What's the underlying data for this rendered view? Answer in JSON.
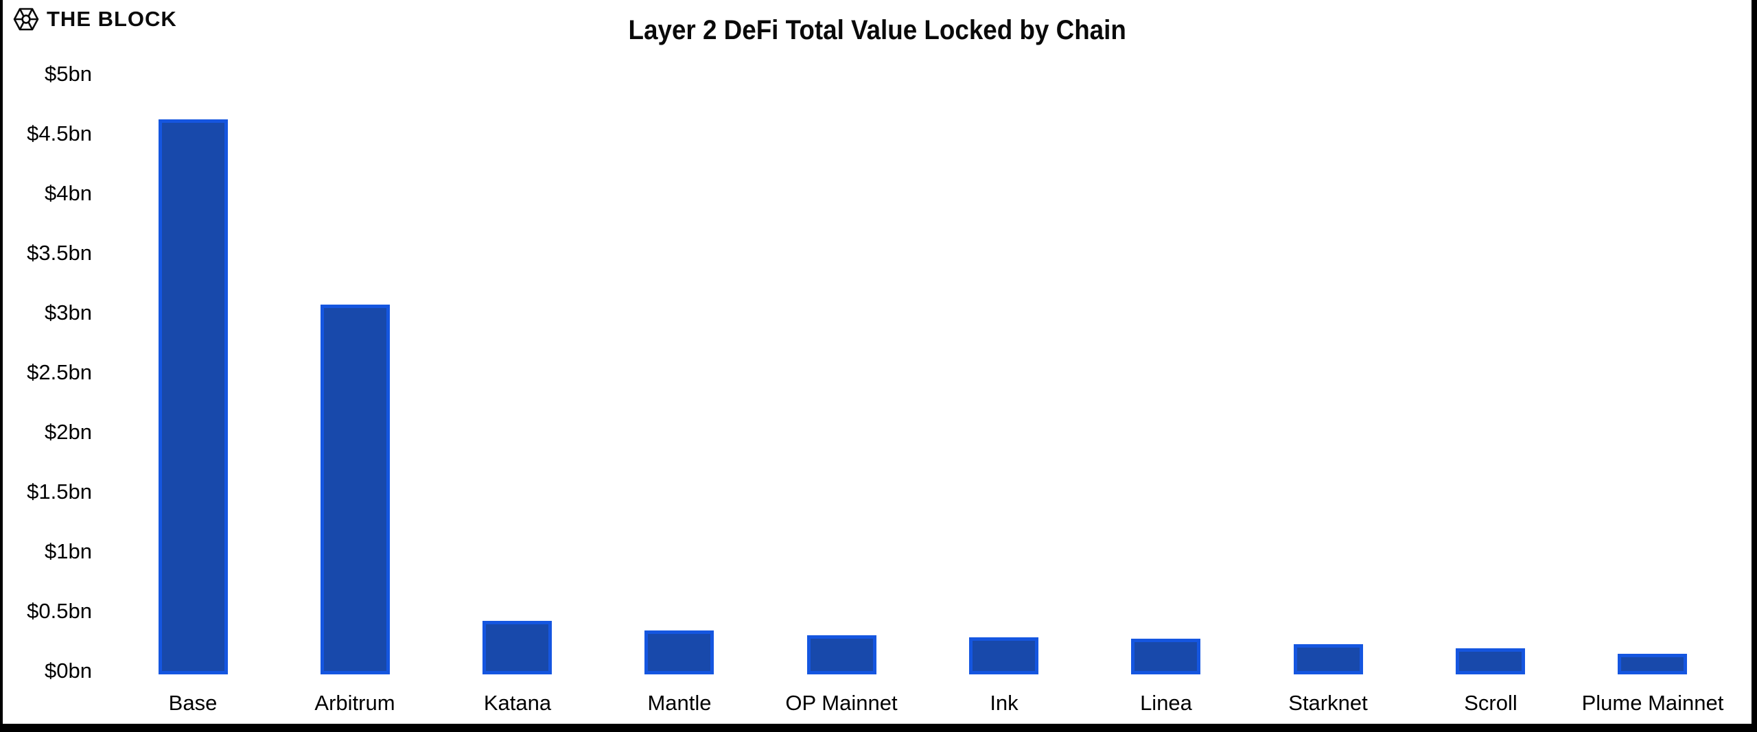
{
  "header": {
    "brand": "THE BLOCK"
  },
  "chart_data": {
    "type": "bar",
    "title": "Layer 2 DeFi Total Value Locked by Chain",
    "xlabel": "",
    "ylabel": "",
    "unit": "$bn",
    "categories": [
      "Base",
      "Arbitrum",
      "Katana",
      "Mantle",
      "OP Mainnet",
      "Ink",
      "Linea",
      "Starknet",
      "Scroll",
      "Plume Mainnet"
    ],
    "values": [
      4.65,
      3.1,
      0.45,
      0.37,
      0.33,
      0.31,
      0.3,
      0.25,
      0.22,
      0.17
    ],
    "ylim": [
      0,
      5
    ],
    "ytick_step": 0.5,
    "ytick_labels": [
      "$0bn",
      "$0.5bn",
      "$1bn",
      "$1.5bn",
      "$2bn",
      "$2.5bn",
      "$3bn",
      "$3.5bn",
      "$4bn",
      "$4.5bn",
      "$5bn"
    ],
    "grid": false,
    "legend": false,
    "colors": {
      "bar_fill": "#1849ab",
      "bar_border": "#1556e0",
      "text": "#000000",
      "frame": "#000000"
    }
  }
}
